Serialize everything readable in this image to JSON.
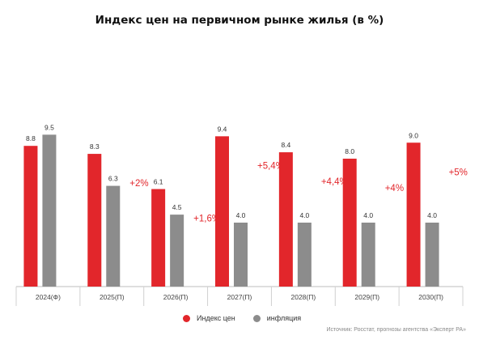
{
  "title": "Индекс цен на первичном рынке жилья (в %)",
  "source": "Источник: Росстат, прогнозы агентства «Эксперт РА»",
  "colors": {
    "price_index": "#e2262b",
    "inflation": "#8c8c8c",
    "delta_text": "#e2262b"
  },
  "chart_data": {
    "type": "bar",
    "title": "Индекс цен на первичном рынке жилья (в %)",
    "categories": [
      "2024(Ф)",
      "2025(П)",
      "2026(П)",
      "2027(П)",
      "2028(П)",
      "2029(П)",
      "2030(П)"
    ],
    "series": [
      {
        "name": "Индекс цен",
        "values": [
          8.8,
          8.3,
          6.1,
          9.4,
          8.4,
          8.0,
          9.0
        ],
        "labels": [
          "8.8",
          "8.3",
          "6.1",
          "9.4",
          "8.4",
          "8.0",
          "9.0"
        ]
      },
      {
        "name": "инфляция",
        "values": [
          9.5,
          6.3,
          4.5,
          4.0,
          4.0,
          4.0,
          4.0
        ],
        "labels": [
          "9.5",
          "6.3",
          "4.5",
          "4.0",
          "4.0",
          "4.0",
          "4.0"
        ]
      }
    ],
    "annotations": [
      "",
      "+2%",
      "+1,6%",
      "+5,4%",
      "+4,4%",
      "+4%",
      "+5%"
    ],
    "ylim": [
      0,
      10
    ],
    "grid": false,
    "legend": "bottom-center"
  }
}
